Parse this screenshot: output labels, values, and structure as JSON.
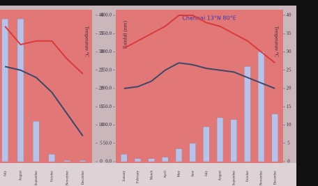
{
  "chart_data": [
    {
      "type": "bar",
      "y2label": "Temperature °C",
      "categories": [
        "July",
        "August",
        "September",
        "October",
        "November",
        "December"
      ],
      "ylim": [
        0,
        400
      ],
      "y2lim": [
        0,
        40
      ],
      "y2ticks": [
        0,
        5,
        10,
        15,
        20,
        25,
        30,
        35,
        40
      ],
      "series": [
        {
          "type": "bar",
          "color": "#b9c1e6",
          "values": [
            390,
            390,
            110,
            20,
            3,
            3
          ]
        },
        {
          "type": "line",
          "axis": "y2",
          "color": "#d93a3a",
          "values": [
            37,
            32,
            33,
            33,
            28,
            24
          ]
        },
        {
          "type": "line",
          "axis": "y2",
          "color": "#3e4866",
          "values": [
            26,
            25,
            23,
            19,
            13,
            7
          ]
        }
      ]
    },
    {
      "type": "bar",
      "title": "Chennai 13°N 80°E",
      "ylabel": "Rainfall (mm)",
      "y2label": "Temperature °C",
      "categories": [
        "January",
        "February",
        "March",
        "April",
        "May",
        "June",
        "July",
        "August",
        "September",
        "October",
        "November",
        "December"
      ],
      "ylim": [
        0,
        400
      ],
      "yticks": [
        {
          "value": 0,
          "label": "0.0"
        },
        {
          "value": 50,
          "label": "50.0"
        },
        {
          "value": 100,
          "label": "100.0"
        },
        {
          "value": 150,
          "label": "150.0"
        },
        {
          "value": 200,
          "label": "200.0"
        },
        {
          "value": 250,
          "label": "250.0"
        },
        {
          "value": 300,
          "label": "300.0"
        },
        {
          "value": 350,
          "label": "350.0"
        },
        {
          "value": 400,
          "label": "400.0"
        }
      ],
      "y2lim": [
        0,
        40
      ],
      "y2ticks": [
        0,
        5,
        10,
        15,
        20,
        25,
        30,
        35,
        40
      ],
      "series": [
        {
          "type": "bar",
          "color": "#b9c1e6",
          "values": [
            20,
            8,
            8,
            12,
            35,
            50,
            95,
            120,
            115,
            260,
            300,
            130
          ]
        },
        {
          "type": "line",
          "axis": "y2",
          "color": "#d93a3a",
          "values": [
            31,
            33,
            35,
            37,
            40,
            40,
            38,
            37,
            35,
            33,
            30,
            27
          ]
        },
        {
          "type": "line",
          "axis": "y2",
          "color": "#3e4866",
          "values": [
            20,
            20.5,
            22,
            25,
            27,
            26.5,
            25.5,
            25,
            24.5,
            23,
            21.5,
            20
          ]
        }
      ]
    }
  ]
}
